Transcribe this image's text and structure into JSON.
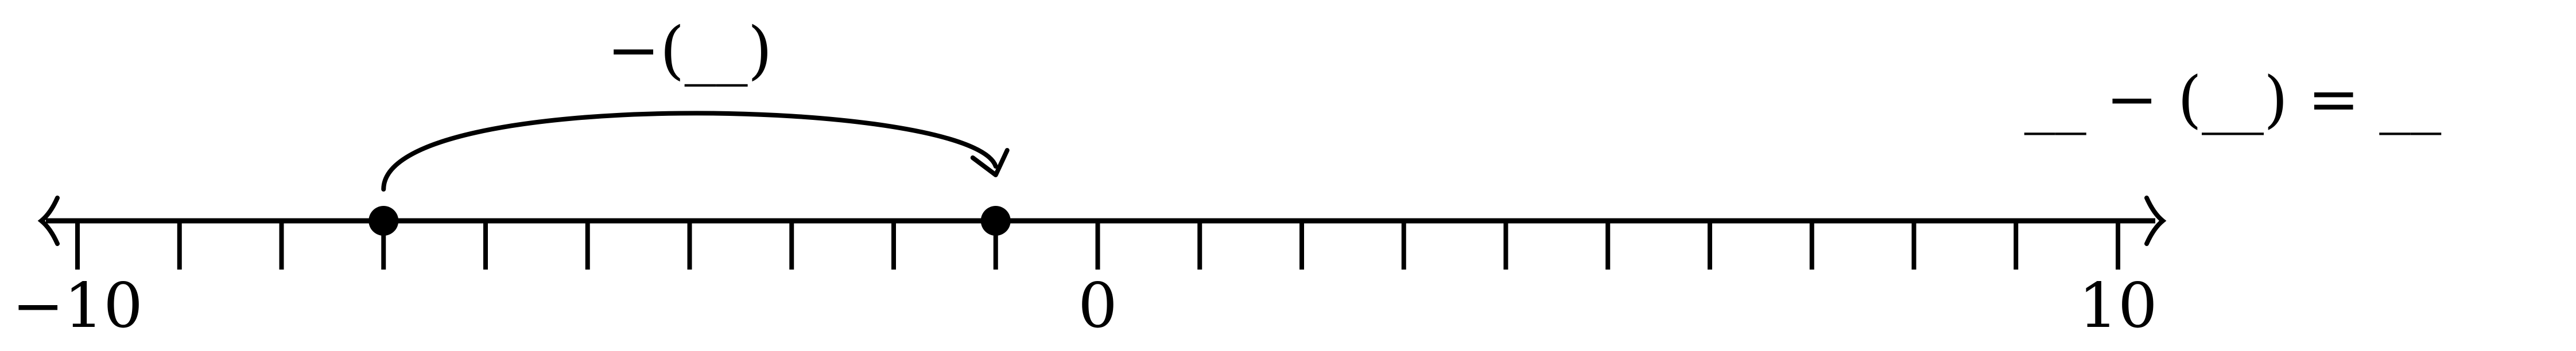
{
  "number_line": {
    "min": -10,
    "max": 10,
    "tick_step": 1,
    "tick_labels": [
      {
        "value": -10,
        "text": "−10"
      },
      {
        "value": 0,
        "text": "0"
      },
      {
        "value": 10,
        "text": "10"
      }
    ],
    "points": [
      {
        "id": "start",
        "value": -7,
        "label": "__"
      },
      {
        "id": "end",
        "value": -1,
        "label": "__"
      }
    ]
  },
  "jump": {
    "from_value": -7,
    "to_value": -1,
    "label": "−(__)"
  },
  "equation": {
    "text": "__ − (__) = __"
  },
  "colors": {
    "ink": "#000000",
    "background": "#ffffff"
  }
}
